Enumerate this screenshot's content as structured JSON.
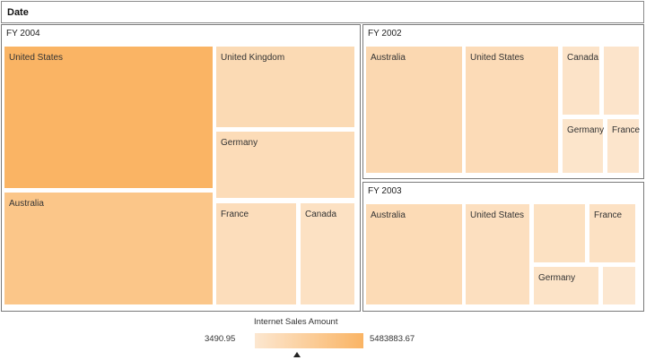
{
  "header": {
    "title": "Date"
  },
  "chart_data": {
    "type": "treemap",
    "measure": "Internet Sales Amount",
    "color_range": {
      "min": 3490.95,
      "max": 5483883.67,
      "min_label": "3490.95",
      "max_label": "5483883.67",
      "min_color": "#fce7d0",
      "max_color": "#fab464"
    },
    "groups": [
      {
        "name": "FY 2004",
        "items": [
          {
            "label": "United States",
            "value": 5483883.67
          },
          {
            "label": "Australia",
            "value": 3600000
          },
          {
            "label": "United Kingdom",
            "value": 1400000
          },
          {
            "label": "Germany",
            "value": 1200000
          },
          {
            "label": "France",
            "value": 1050000
          },
          {
            "label": "Canada",
            "value": 650000
          }
        ]
      },
      {
        "name": "FY 2002",
        "items": [
          {
            "label": "Australia",
            "value": 1600000
          },
          {
            "label": "United States",
            "value": 1250000
          },
          {
            "label": "Canada",
            "value": 400000
          },
          {
            "label": "",
            "value": 280000
          },
          {
            "label": "Germany",
            "value": 270000
          },
          {
            "label": "France",
            "value": 210000
          }
        ]
      },
      {
        "name": "FY 2003",
        "items": [
          {
            "label": "Australia",
            "value": 1300000
          },
          {
            "label": "United States",
            "value": 850000
          },
          {
            "label": "",
            "value": 690000
          },
          {
            "label": "France",
            "value": 640000
          },
          {
            "label": "Germany",
            "value": 480000
          },
          {
            "label": "",
            "value": 3490.95
          }
        ]
      }
    ]
  },
  "legend": {
    "title": "Internet Sales Amount",
    "min_label": "3490.95",
    "max_label": "5483883.67"
  }
}
